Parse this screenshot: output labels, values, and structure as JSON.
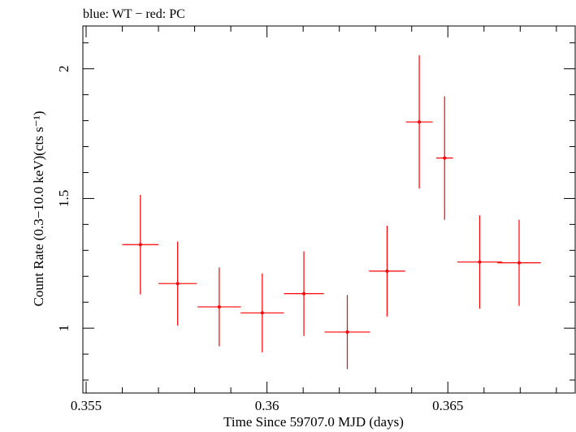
{
  "chart_data": {
    "type": "scatter",
    "title": "blue: WT − red: PC",
    "xlabel": "Time Since 59707.0 MJD (days)",
    "ylabel": "Count Rate (0.3−10.0 keV)(cts s⁻¹)",
    "xlim": [
      0.35491,
      0.36852
    ],
    "ylim": [
      0.75,
      2.165
    ],
    "grid": false,
    "x_ticks": [
      {
        "value": 0.355,
        "label": "0.355"
      },
      {
        "value": 0.36,
        "label": "0.36"
      },
      {
        "value": 0.365,
        "label": "0.365"
      }
    ],
    "y_ticks": [
      {
        "value": 1.0,
        "label": "1"
      },
      {
        "value": 1.5,
        "label": "1.5"
      },
      {
        "value": 2.0,
        "label": "2"
      }
    ],
    "series": [
      {
        "color": "#ff0000",
        "points": [
          {
            "x": 0.3565,
            "y": 1.322,
            "xerr": 0.0005,
            "yerr_low": 0.192,
            "yerr_high": 0.192
          },
          {
            "x": 0.35753,
            "y": 1.172,
            "xerr": 0.00053,
            "yerr_low": 0.162,
            "yerr_high": 0.162
          },
          {
            "x": 0.35868,
            "y": 1.082,
            "xerr": 0.0006,
            "yerr_low": 0.152,
            "yerr_high": 0.152
          },
          {
            "x": 0.35987,
            "y": 1.059,
            "xerr": 0.0006,
            "yerr_low": 0.152,
            "yerr_high": 0.152
          },
          {
            "x": 0.36102,
            "y": 1.133,
            "xerr": 0.00055,
            "yerr_low": 0.163,
            "yerr_high": 0.163
          },
          {
            "x": 0.36222,
            "y": 0.985,
            "xerr": 0.00063,
            "yerr_low": 0.143,
            "yerr_high": 0.143
          },
          {
            "x": 0.36332,
            "y": 1.22,
            "xerr": 0.0005,
            "yerr_low": 0.175,
            "yerr_high": 0.175
          },
          {
            "x": 0.36421,
            "y": 1.795,
            "xerr": 0.00037,
            "yerr_low": 0.257,
            "yerr_high": 0.257
          },
          {
            "x": 0.36491,
            "y": 1.656,
            "xerr": 0.00023,
            "yerr_low": 0.238,
            "yerr_high": 0.238
          },
          {
            "x": 0.36588,
            "y": 1.255,
            "xerr": 0.00062,
            "yerr_low": 0.18,
            "yerr_high": 0.18
          },
          {
            "x": 0.36697,
            "y": 1.252,
            "xerr": 0.0006,
            "yerr_low": 0.166,
            "yerr_high": 0.166
          }
        ]
      }
    ]
  }
}
